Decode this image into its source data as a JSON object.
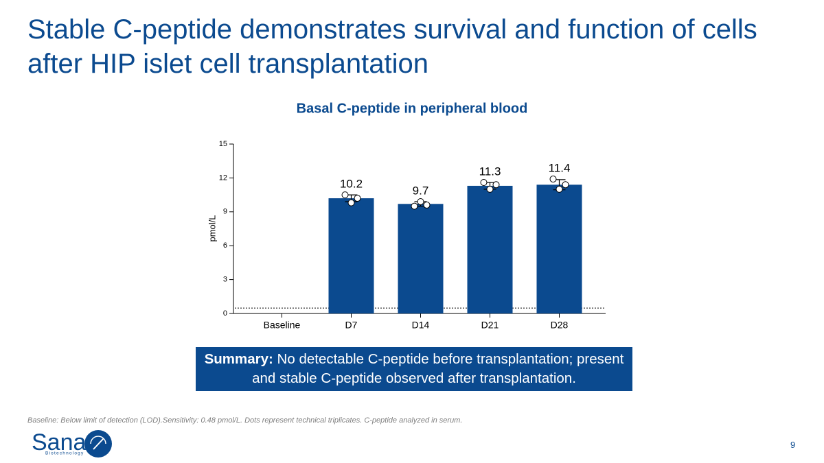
{
  "slide_title": "Stable C-peptide demonstrates survival and function of cells after HIP islet cell transplantation",
  "chart_data": {
    "type": "bar",
    "title": "Basal C-peptide in peripheral blood",
    "y_label": "pmol/L",
    "categories": [
      "Baseline",
      "D7",
      "D14",
      "D21",
      "D28"
    ],
    "values": [
      null,
      10.2,
      9.7,
      11.3,
      11.4
    ],
    "errors": [
      null,
      0.3,
      0.2,
      0.3,
      0.45
    ],
    "points": [
      null,
      [
        10.5,
        9.8,
        10.2
      ],
      [
        9.5,
        9.9,
        9.6
      ],
      [
        11.6,
        11.0,
        11.4
      ],
      [
        11.9,
        11.0,
        11.4
      ]
    ],
    "reference_line": 0.48,
    "color": "#0b4a8f",
    "ylim": [
      0,
      15
    ],
    "yticks": [
      0,
      3,
      6,
      9,
      12,
      15
    ]
  },
  "summary": {
    "label": "Summary:",
    "text": "No detectable C-peptide before transplantation; present and stable C-peptide observed after transplantation."
  },
  "footnote": "Baseline: Below limit of detection (LOD).Sensitivity: 0.48 pmol/L. Dots represent technical triplicates. C-peptide analyzed in serum.",
  "logo": {
    "name": "Sana",
    "tagline": "Biotechnology"
  },
  "page_number": "9"
}
